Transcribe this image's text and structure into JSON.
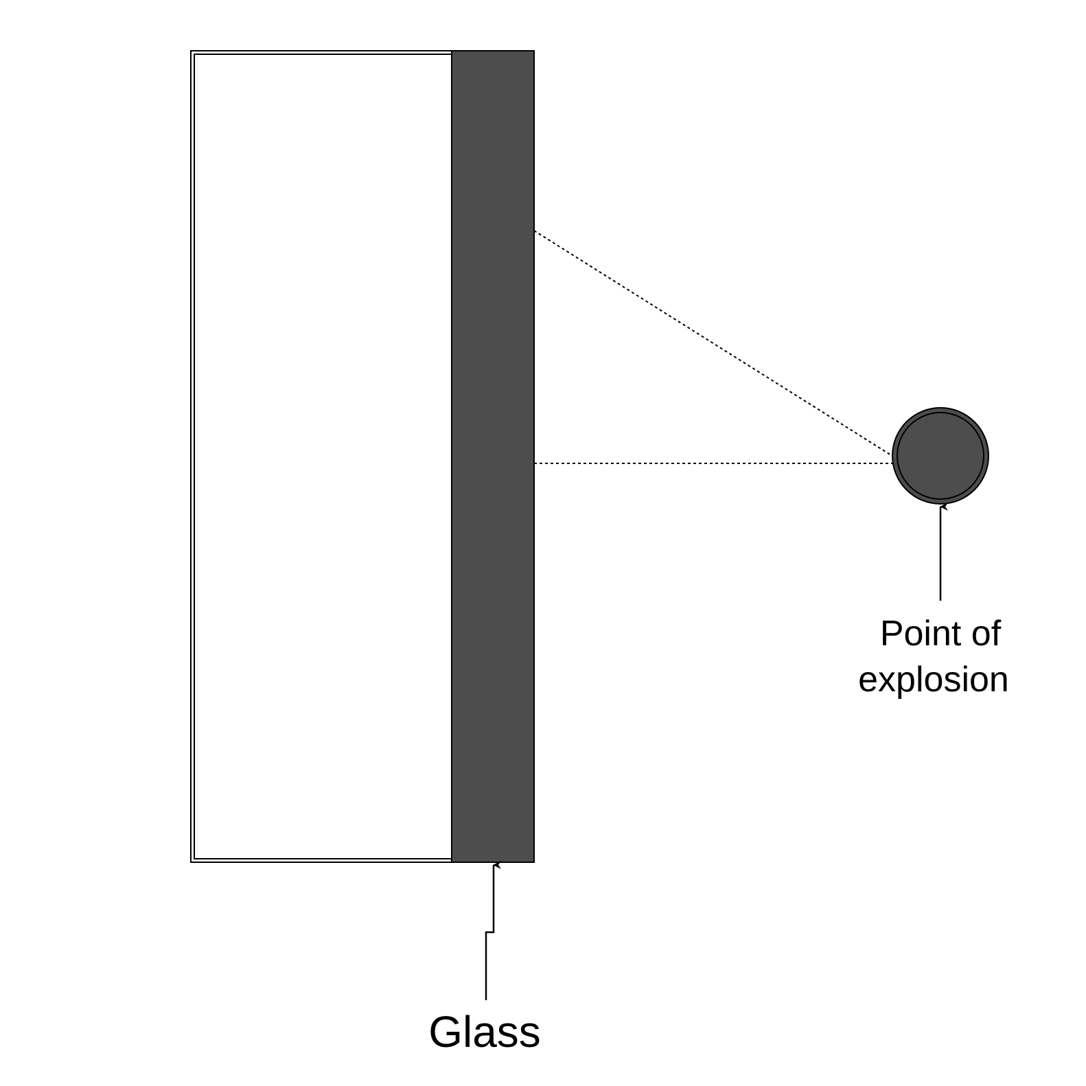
{
  "labels": {
    "glass": "Glass",
    "explosion_line1": "Point of",
    "explosion_line2": "explosion"
  },
  "colors": {
    "glass_fill": "#4d4d4d",
    "explosion_fill": "#4d4d4d",
    "stroke": "#000000",
    "frame_fill": "#ffffff"
  },
  "icons": {
    "explosion": "filled-circle-icon"
  }
}
